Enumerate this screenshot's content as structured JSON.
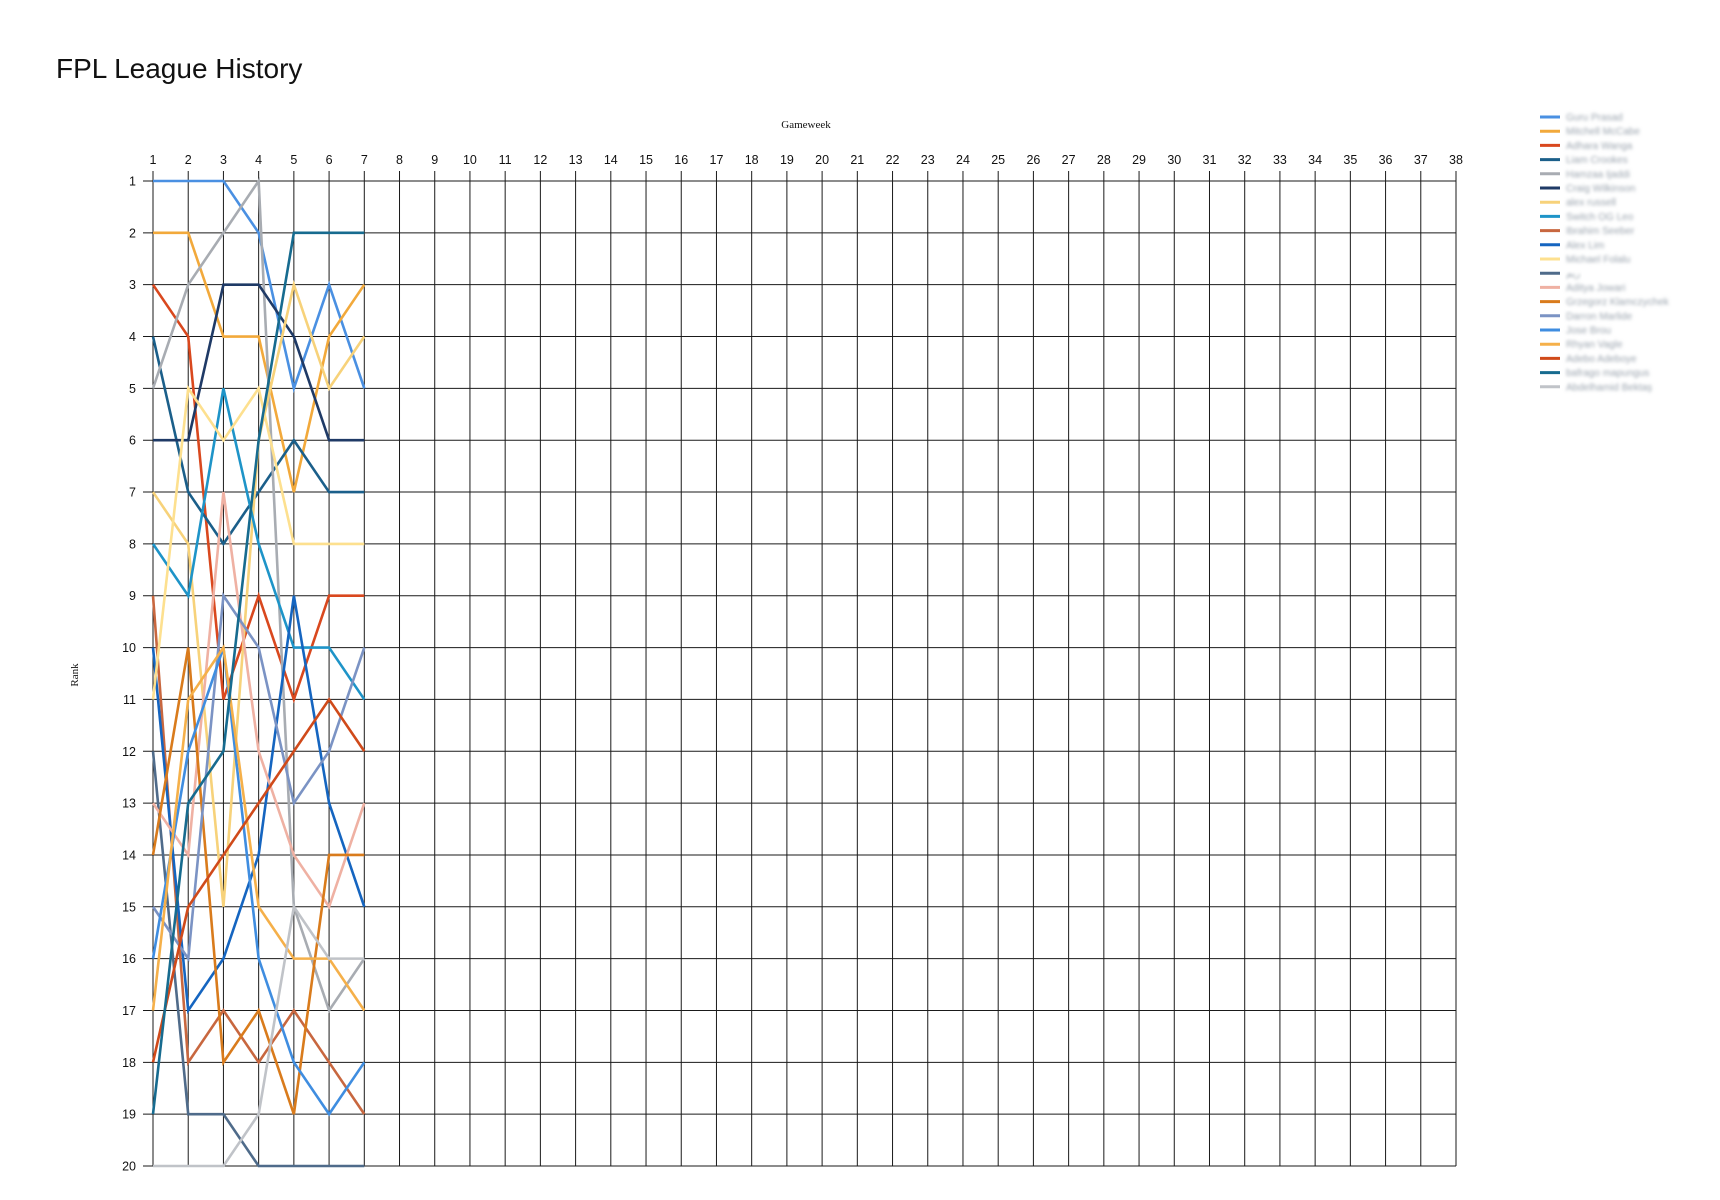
{
  "app": {
    "title": "FPL League History"
  },
  "chart_data": {
    "type": "line",
    "xlabel": "Gameweek",
    "ylabel": "Rank",
    "x_ticks": [
      1,
      2,
      3,
      4,
      5,
      6,
      7,
      8,
      9,
      10,
      11,
      12,
      13,
      14,
      15,
      16,
      17,
      18,
      19,
      20,
      21,
      22,
      23,
      24,
      25,
      26,
      27,
      28,
      29,
      30,
      31,
      32,
      33,
      34,
      35,
      36,
      37,
      38
    ],
    "y_ticks": [
      1,
      2,
      3,
      4,
      5,
      6,
      7,
      8,
      9,
      10,
      11,
      12,
      13,
      14,
      15,
      16,
      17,
      18,
      19,
      20
    ],
    "xlim": [
      1,
      38
    ],
    "ylim": [
      1,
      20
    ],
    "y_inverted": true,
    "grid": true,
    "legend_position": "top-right",
    "gameweeks": [
      1,
      2,
      3,
      4,
      5,
      6,
      7
    ],
    "series": [
      {
        "name": "Guru Prasad",
        "color": "#4a90e2",
        "values": [
          1,
          1,
          1,
          2,
          5,
          3,
          5
        ]
      },
      {
        "name": "Mitchell McCabe",
        "color": "#f2a93b",
        "values": [
          2,
          2,
          4,
          4,
          7,
          4,
          3
        ]
      },
      {
        "name": "Adhara Wanga",
        "color": "#d9481e",
        "values": [
          3,
          4,
          11,
          9,
          11,
          9,
          9
        ]
      },
      {
        "name": "Liam Crookes",
        "color": "#1b5f8a",
        "values": [
          4,
          7,
          8,
          7,
          6,
          7,
          7
        ]
      },
      {
        "name": "Hamzaa Ijaddi",
        "color": "#a8acb2",
        "values": [
          5,
          3,
          2,
          1,
          15,
          17,
          16
        ]
      },
      {
        "name": "Craig Wilkinson",
        "color": "#1f3a66",
        "values": [
          6,
          6,
          3,
          3,
          4,
          6,
          6
        ]
      },
      {
        "name": "alex russell",
        "color": "#f7d27a",
        "values": [
          7,
          8,
          15,
          6,
          3,
          5,
          4
        ]
      },
      {
        "name": "Switch OG Leo",
        "color": "#1e94c8",
        "values": [
          8,
          9,
          5,
          8,
          10,
          10,
          11
        ]
      },
      {
        "name": "Ibrahim Seeber",
        "color": "#c8673f",
        "values": [
          9,
          18,
          17,
          18,
          17,
          18,
          19
        ]
      },
      {
        "name": "Alex Lim",
        "color": "#1565c0",
        "values": [
          10,
          17,
          16,
          14,
          9,
          13,
          15
        ]
      },
      {
        "name": "Michael Folalu",
        "color": "#fde08f",
        "values": [
          11,
          5,
          6,
          5,
          8,
          8,
          8
        ]
      },
      {
        "name": "ريم",
        "color": "#4f6b8a",
        "values": [
          12,
          19,
          19,
          20,
          20,
          20,
          20
        ]
      },
      {
        "name": "Aditya Jowari",
        "color": "#efb1a3",
        "values": [
          13,
          14,
          7,
          12,
          14,
          15,
          13
        ]
      },
      {
        "name": "Grzegorz Klamczychek",
        "color": "#d97b1c",
        "values": [
          14,
          10,
          18,
          17,
          19,
          14,
          14
        ]
      },
      {
        "name": "Darron Marlide",
        "color": "#7b93c4",
        "values": [
          15,
          16,
          9,
          10,
          13,
          12,
          10
        ]
      },
      {
        "name": "Jose Brou",
        "color": "#3f8de0",
        "values": [
          16,
          12,
          10,
          16,
          18,
          19,
          18
        ]
      },
      {
        "name": "Rhyan Vagle",
        "color": "#f5b04a",
        "values": [
          17,
          11,
          10,
          15,
          16,
          16,
          17
        ]
      },
      {
        "name": "Adebo Adeboye",
        "color": "#d04a1a",
        "values": [
          18,
          15,
          14,
          13,
          12,
          11,
          12
        ]
      },
      {
        "name": "bafrago mapungus",
        "color": "#176b8f",
        "values": [
          19,
          13,
          12,
          6,
          2,
          2,
          2
        ]
      },
      {
        "name": "Abdelhamid Bektaş",
        "color": "#c0c3c8",
        "values": [
          20,
          20,
          20,
          19,
          15,
          16,
          16
        ]
      }
    ]
  }
}
